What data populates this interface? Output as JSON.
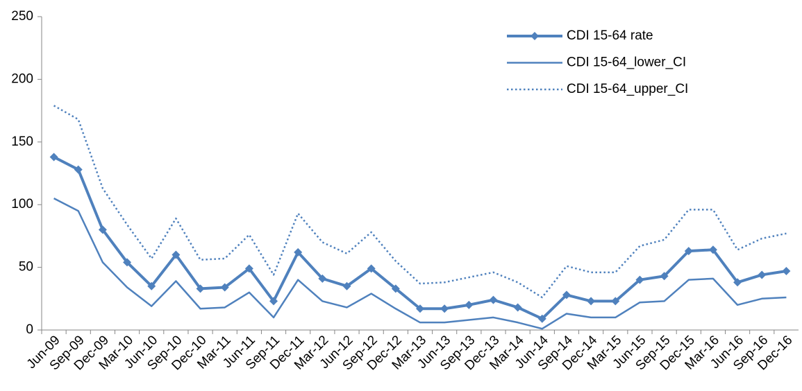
{
  "chart_data": {
    "type": "line",
    "categories": [
      "Jun-09",
      "Sep-09",
      "Dec-09",
      "Mar-10",
      "Jun-10",
      "Sep-10",
      "Dec-10",
      "Mar-11",
      "Jun-11",
      "Sep-11",
      "Dec-11",
      "Mar-12",
      "Jun-12",
      "Sep-12",
      "Dec-12",
      "Mar-13",
      "Jun-13",
      "Sep-13",
      "Dec-13",
      "Mar-14",
      "Jun-14",
      "Sep-14",
      "Dec-14",
      "Mar-15",
      "Jun-15",
      "Sep-15",
      "Dec-15",
      "Mar-16",
      "Jun-16",
      "Sep-16",
      "Dec-16"
    ],
    "series": [
      {
        "name": "CDI 15-64 rate",
        "color": "#4f81bd",
        "line_style": "solid",
        "line_width": 4,
        "marker": "diamond",
        "values": [
          138,
          128,
          80,
          54,
          35,
          60,
          33,
          34,
          49,
          23,
          62,
          41,
          35,
          49,
          33,
          17,
          17,
          20,
          24,
          18,
          9,
          28,
          23,
          23,
          40,
          43,
          63,
          64,
          38,
          44,
          47
        ]
      },
      {
        "name": "CDI 15-64_lower_CI",
        "color": "#4f81bd",
        "line_style": "solid",
        "line_width": 2.5,
        "marker": "none",
        "values": [
          105,
          95,
          54,
          34,
          19,
          39,
          17,
          18,
          30,
          10,
          40,
          23,
          18,
          29,
          17,
          6,
          6,
          8,
          10,
          6,
          1,
          13,
          10,
          10,
          22,
          23,
          40,
          41,
          20,
          25,
          26
        ]
      },
      {
        "name": "CDI 15-64_upper_CI",
        "color": "#4f81bd",
        "line_style": "dotted",
        "line_width": 2.5,
        "marker": "none",
        "values": [
          179,
          168,
          113,
          84,
          57,
          89,
          56,
          57,
          76,
          44,
          93,
          70,
          61,
          78,
          55,
          37,
          38,
          42,
          46,
          38,
          26,
          51,
          46,
          46,
          67,
          72,
          96,
          96,
          64,
          73,
          77
        ]
      }
    ],
    "ylim": [
      0,
      250
    ],
    "yticks": [
      0,
      50,
      100,
      150,
      200,
      250
    ],
    "grid": false,
    "legend": "top-right"
  }
}
